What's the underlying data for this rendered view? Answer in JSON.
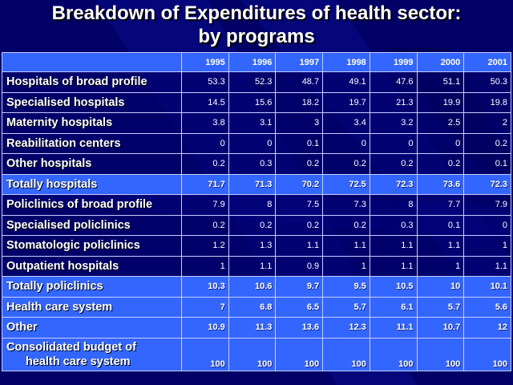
{
  "title": {
    "line1": "Breakdown of Expenditures of health sector:",
    "line2": "by programs"
  },
  "colors": {
    "background": "#000066",
    "header_row": "#3366ff",
    "total_row": "#3366ff",
    "grid_lines": "#c8ccff",
    "text": "#ffffff"
  },
  "table": {
    "columns": [
      "1995",
      "1996",
      "1997",
      "1998",
      "1999",
      "2000",
      "2001"
    ],
    "rows": [
      {
        "label": "Hospitals of broad profile",
        "type": "plain",
        "values": [
          "53.3",
          "52.3",
          "48.7",
          "49.1",
          "47.6",
          "51.1",
          "50.3"
        ]
      },
      {
        "label": "Specialised hospitals",
        "type": "plain",
        "values": [
          "14.5",
          "15.6",
          "18.2",
          "19.7",
          "21.3",
          "19.9",
          "19.8"
        ]
      },
      {
        "label": "Maternity hospitals",
        "type": "plain",
        "values": [
          "3.8",
          "3.1",
          "3",
          "3.4",
          "3.2",
          "2.5",
          "2"
        ]
      },
      {
        "label": "Reabilitation centers",
        "type": "plain",
        "values": [
          "0",
          "0",
          "0.1",
          "0",
          "0",
          "0",
          "0.2"
        ]
      },
      {
        "label": "Other hospitals",
        "type": "plain",
        "values": [
          "0.2",
          "0.3",
          "0.2",
          "0.2",
          "0.2",
          "0.2",
          "0.1"
        ]
      },
      {
        "label": "Totally hospitals",
        "type": "total",
        "values": [
          "71.7",
          "71.3",
          "70.2",
          "72.5",
          "72.3",
          "73.6",
          "72.3"
        ]
      },
      {
        "label": "Policlinics of broad profile",
        "type": "plain",
        "values": [
          "7.9",
          "8",
          "7.5",
          "7.3",
          "8",
          "7.7",
          "7.9"
        ]
      },
      {
        "label": "Specialised policlinics",
        "type": "plain",
        "values": [
          "0.2",
          "0.2",
          "0.2",
          "0.2",
          "0.3",
          "0.1",
          "0"
        ]
      },
      {
        "label": "Stomatologic policlinics",
        "type": "plain",
        "values": [
          "1.2",
          "1.3",
          "1.1",
          "1.1",
          "1.1",
          "1.1",
          "1"
        ]
      },
      {
        "label": "Outpatient hospitals",
        "type": "plain",
        "values": [
          "1",
          "1.1",
          "0.9",
          "1",
          "1.1",
          "1",
          "1.1"
        ]
      },
      {
        "label": "Totally policlinics",
        "type": "total",
        "values": [
          "10.3",
          "10.6",
          "9.7",
          "9.5",
          "10.5",
          "10",
          "10.1"
        ]
      },
      {
        "label": "Health care system",
        "type": "total",
        "values": [
          "7",
          "6.8",
          "6.5",
          "5.7",
          "6.1",
          "5.7",
          "5.6"
        ]
      },
      {
        "label": "Other",
        "type": "total",
        "values": [
          "10.9",
          "11.3",
          "13.6",
          "12.3",
          "11.1",
          "10.7",
          "12"
        ]
      },
      {
        "label": "Consolidated budget of",
        "label2": "health care system",
        "type": "total tall",
        "values": [
          "100",
          "100",
          "100",
          "100",
          "100",
          "100",
          "100"
        ]
      }
    ]
  }
}
